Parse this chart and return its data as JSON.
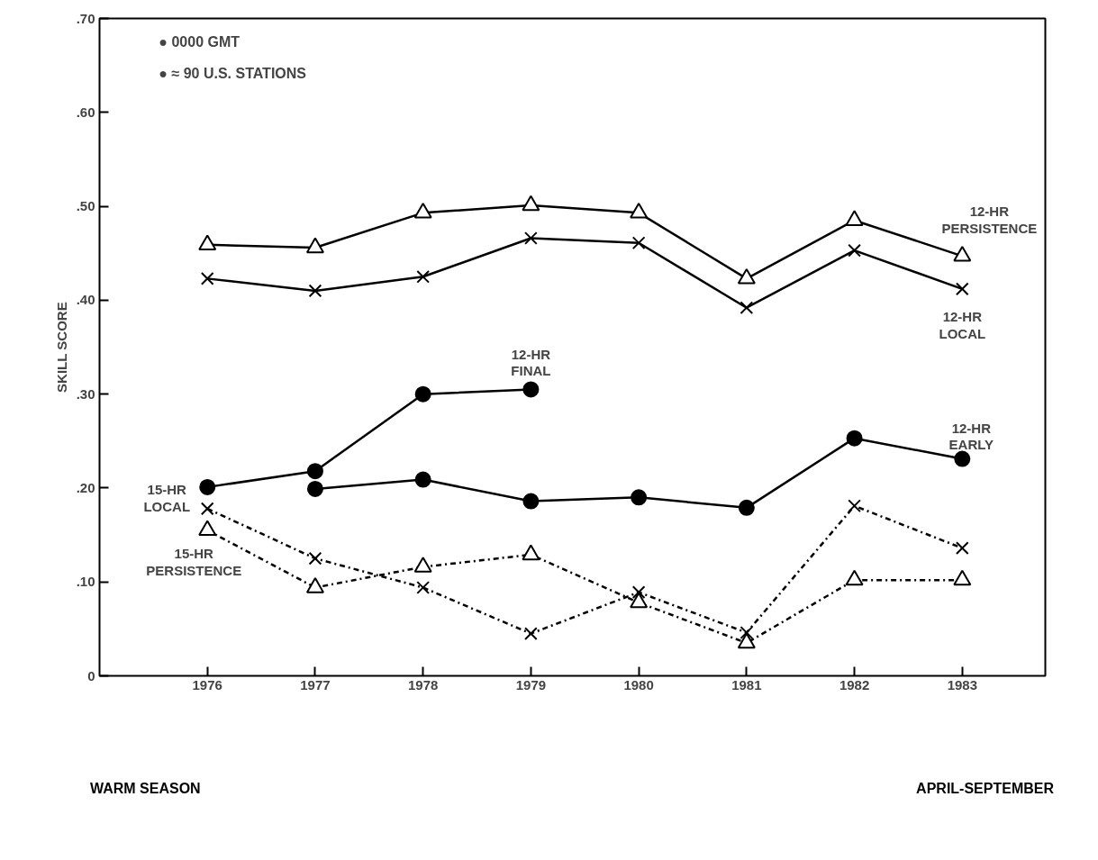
{
  "chart_data": {
    "type": "line",
    "ylabel": "SKILL SCORE",
    "x": [
      1976,
      1977,
      1978,
      1979,
      1980,
      1981,
      1982,
      1983
    ],
    "xlim": [
      1975,
      1983.77
    ],
    "xticks": [
      1976,
      1977,
      1978,
      1979,
      1980,
      1981,
      1982,
      1983
    ],
    "ylim": [
      0,
      0.7
    ],
    "yticks": [
      0,
      {
        "value": 0.1,
        "label": ".10"
      },
      {
        "value": 0.2,
        "label": ".20"
      },
      {
        "value": 0.3,
        "label": ".30"
      },
      {
        "value": 0.4,
        "label": ".40"
      },
      {
        "value": 0.5,
        "label": ".50"
      },
      {
        "value": 0.6,
        "label": ".60"
      },
      {
        "value": 0.7,
        "label": ".70"
      }
    ],
    "grid": false,
    "series": [
      {
        "name": "12-HR PERSISTENCE",
        "color": "#000000",
        "marker": "triangle",
        "line_style": "solid",
        "values": [
          0.459,
          0.456,
          0.493,
          0.501,
          0.493,
          0.423,
          0.485,
          0.447
        ]
      },
      {
        "name": "12-HR LOCAL",
        "color": "#000000",
        "marker": "cross",
        "line_style": "solid",
        "values": [
          0.423,
          0.41,
          0.425,
          0.466,
          0.461,
          0.392,
          0.453,
          0.412
        ]
      },
      {
        "name": "12-HR FINAL",
        "color": "#000000",
        "marker": "circle",
        "line_style": "solid",
        "values": [
          0.201,
          0.218,
          0.3,
          0.305,
          null,
          null,
          null,
          null
        ]
      },
      {
        "name": "12-HR EARLY",
        "color": "#000000",
        "marker": "circle",
        "line_style": "solid",
        "values": [
          null,
          0.199,
          0.209,
          0.186,
          0.19,
          0.179,
          0.253,
          0.231
        ]
      },
      {
        "name": "15-HR LOCAL",
        "color": "#000000",
        "marker": "cross",
        "line_style": "dashed",
        "values": [
          0.178,
          0.125,
          0.094,
          0.045,
          0.089,
          0.046,
          0.181,
          0.136
        ]
      },
      {
        "name": "15-HR PERSISTENCE",
        "color": "#000000",
        "marker": "triangle",
        "line_style": "dashed",
        "values": [
          0.155,
          0.094,
          0.116,
          0.129,
          0.078,
          0.035,
          0.102,
          0.102
        ]
      }
    ],
    "annotations": [
      "● 0000 GMT",
      "● ≈ 90 U.S. STATIONS",
      "WARM SEASON",
      "APRIL-SEPTEMBER"
    ]
  }
}
